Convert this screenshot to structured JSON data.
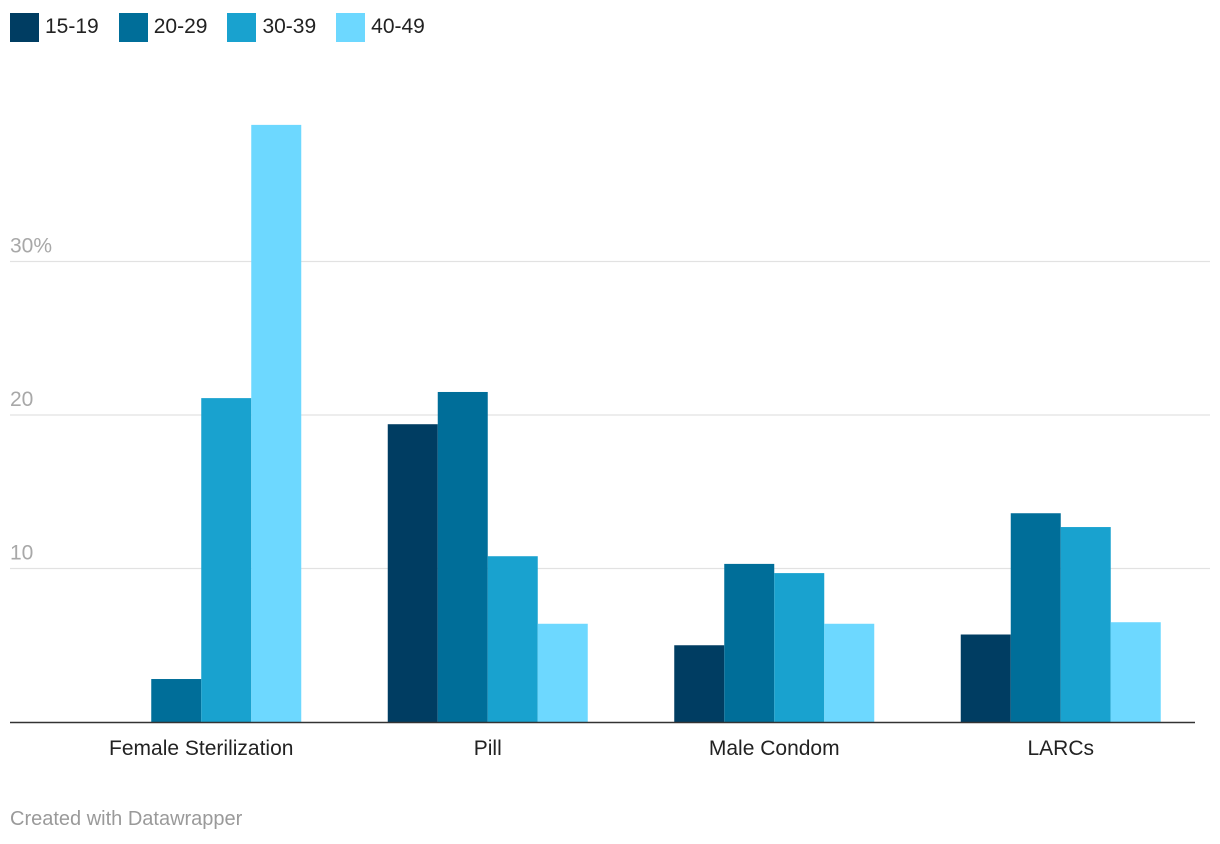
{
  "chart_data": {
    "type": "bar",
    "categories": [
      "Female Sterilization",
      "Pill",
      "Male Condom",
      "LARCs"
    ],
    "series": [
      {
        "name": "15-19",
        "values": [
          0,
          19.4,
          5.0,
          5.7
        ],
        "color": "#003d62"
      },
      {
        "name": "20-29",
        "values": [
          2.8,
          21.5,
          10.3,
          13.6
        ],
        "color": "#006e99"
      },
      {
        "name": "30-39",
        "values": [
          21.1,
          10.8,
          9.7,
          12.7
        ],
        "color": "#19a2cf"
      },
      {
        "name": "40-49",
        "values": [
          38.9,
          6.4,
          6.4,
          6.5
        ],
        "color": "#6dd8ff"
      }
    ],
    "yticks": [
      {
        "value": 10,
        "label": "10"
      },
      {
        "value": 20,
        "label": "20"
      },
      {
        "value": 30,
        "label": "30%"
      }
    ],
    "ylim": [
      0,
      40
    ],
    "grid": true,
    "legend_position": "top-left"
  },
  "footer": {
    "credit": "Created with Datawrapper"
  }
}
